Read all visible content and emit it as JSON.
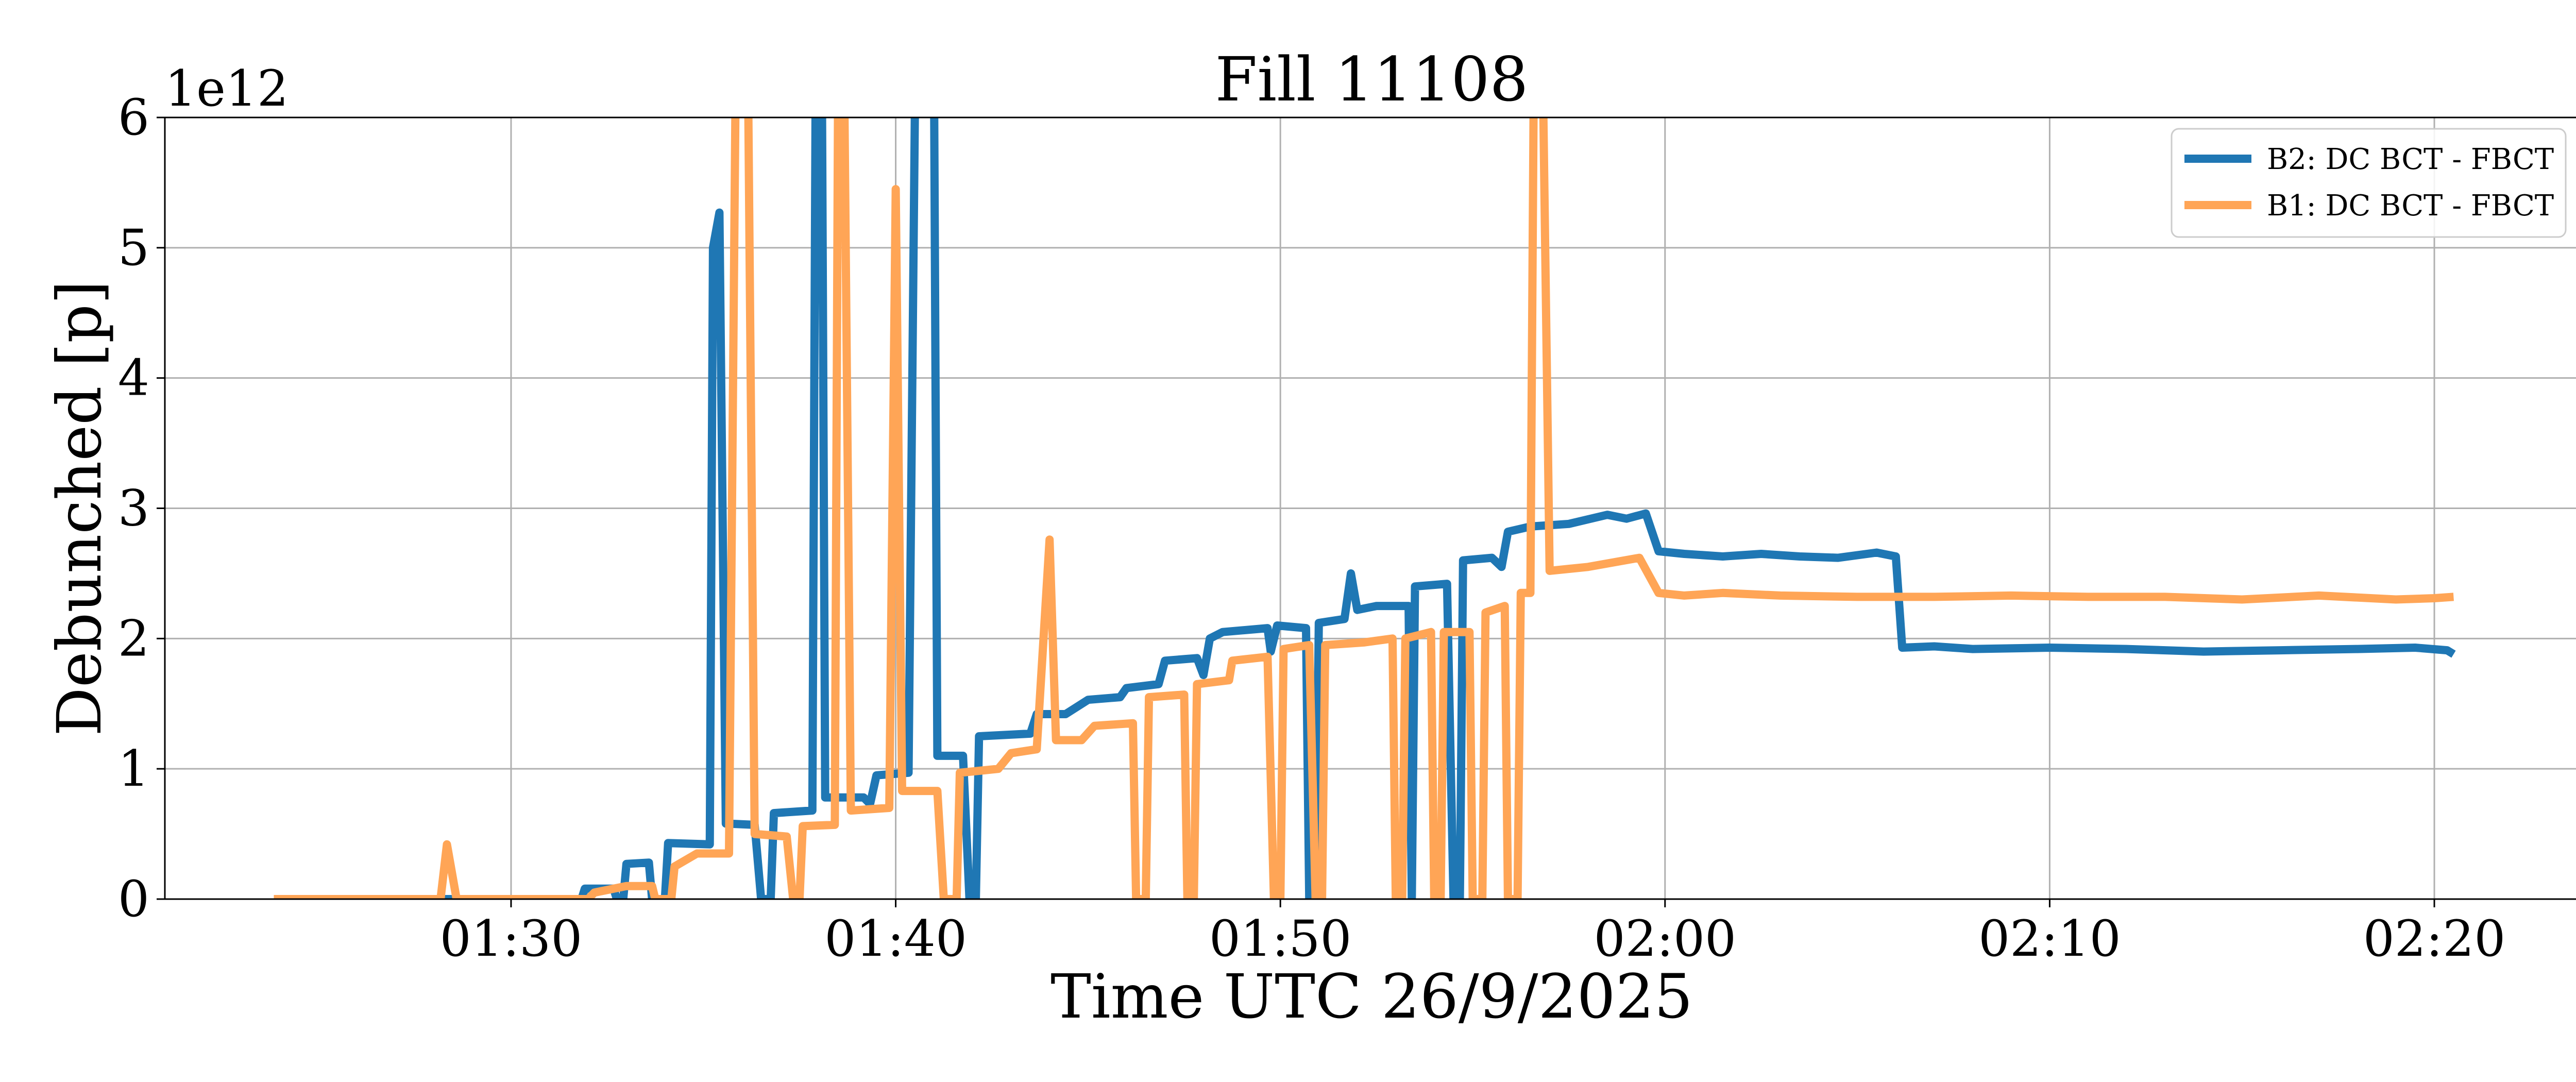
{
  "chart_data": {
    "type": "line",
    "title": "Fill 11108",
    "xlabel": "Time UTC 26/9/2025",
    "ylabel": "Debunched [p]",
    "y_offset_label": "1e12",
    "y_scale_factor": 1000000000000.0,
    "xlim": [
      "01:21:00",
      "02:23:45"
    ],
    "ylim": [
      0,
      6
    ],
    "x_ticks": [
      "01:30",
      "01:40",
      "01:50",
      "02:00",
      "02:10",
      "02:20"
    ],
    "y_ticks": [
      "0",
      "1",
      "2",
      "3",
      "4",
      "5",
      "6"
    ],
    "grid": true,
    "legend_position": "top-right",
    "series": [
      {
        "name": "B2: DC BCT - FBCT",
        "color": "#1f77b4",
        "points": [
          [
            "01:23:50",
            0
          ],
          [
            "01:31:50",
            0
          ],
          [
            "01:31:55",
            0.08
          ],
          [
            "01:32:40",
            0.08
          ],
          [
            "01:32:45",
            0
          ],
          [
            "01:32:55",
            0
          ],
          [
            "01:33:00",
            0.27
          ],
          [
            "01:33:35",
            0.28
          ],
          [
            "01:33:40",
            0
          ],
          [
            "01:34:00",
            0
          ],
          [
            "01:34:05",
            0.43
          ],
          [
            "01:35:10",
            0.42
          ],
          [
            "01:35:15",
            5.0
          ],
          [
            "01:35:25",
            5.27
          ],
          [
            "01:35:35",
            0.58
          ],
          [
            "01:36:20",
            0.57
          ],
          [
            "01:36:30",
            0
          ],
          [
            "01:36:45",
            0
          ],
          [
            "01:36:50",
            0.66
          ],
          [
            "01:37:50",
            0.68
          ],
          [
            "01:37:55",
            6.1
          ],
          [
            "01:38:05",
            6.1
          ],
          [
            "01:38:10",
            0.78
          ],
          [
            "01:39:10",
            0.78
          ],
          [
            "01:39:20",
            0.73
          ],
          [
            "01:39:30",
            0.95
          ],
          [
            "01:40:20",
            0.97
          ],
          [
            "01:40:30",
            6.1
          ],
          [
            "01:41:00",
            6.1
          ],
          [
            "01:41:05",
            1.1
          ],
          [
            "01:41:45",
            1.1
          ],
          [
            "01:41:55",
            0
          ],
          [
            "01:42:05",
            0
          ],
          [
            "01:42:10",
            1.25
          ],
          [
            "01:43:30",
            1.27
          ],
          [
            "01:43:40",
            1.42
          ],
          [
            "01:44:25",
            1.42
          ],
          [
            "01:45:00",
            1.53
          ],
          [
            "01:45:50",
            1.55
          ],
          [
            "01:46:00",
            1.62
          ],
          [
            "01:46:50",
            1.65
          ],
          [
            "01:47:00",
            1.83
          ],
          [
            "01:47:50",
            1.85
          ],
          [
            "01:48:00",
            1.72
          ],
          [
            "01:48:10",
            2.0
          ],
          [
            "01:48:30",
            2.05
          ],
          [
            "01:49:40",
            2.08
          ],
          [
            "01:49:45",
            1.9
          ],
          [
            "01:49:55",
            2.1
          ],
          [
            "01:50:40",
            2.08
          ],
          [
            "01:50:45",
            0
          ],
          [
            "01:50:55",
            0
          ],
          [
            "01:51:00",
            2.12
          ],
          [
            "01:51:40",
            2.15
          ],
          [
            "01:51:50",
            2.5
          ],
          [
            "01:52:00",
            2.22
          ],
          [
            "01:52:30",
            2.25
          ],
          [
            "01:53:20",
            2.25
          ],
          [
            "01:53:25",
            0
          ],
          [
            "01:53:30",
            2.4
          ],
          [
            "01:54:20",
            2.42
          ],
          [
            "01:54:30",
            0
          ],
          [
            "01:54:40",
            0
          ],
          [
            "01:54:45",
            2.6
          ],
          [
            "01:55:30",
            2.62
          ],
          [
            "01:55:45",
            2.55
          ],
          [
            "01:55:55",
            2.82
          ],
          [
            "01:56:30",
            2.86
          ],
          [
            "01:57:30",
            2.88
          ],
          [
            "01:58:30",
            2.95
          ],
          [
            "01:59:00",
            2.92
          ],
          [
            "01:59:30",
            2.96
          ],
          [
            "01:59:50",
            2.67
          ],
          [
            "02:00:30",
            2.65
          ],
          [
            "02:01:30",
            2.63
          ],
          [
            "02:02:30",
            2.65
          ],
          [
            "02:03:30",
            2.63
          ],
          [
            "02:04:30",
            2.62
          ],
          [
            "02:05:30",
            2.66
          ],
          [
            "02:06:00",
            2.63
          ],
          [
            "02:06:10",
            1.93
          ],
          [
            "02:07:00",
            1.94
          ],
          [
            "02:08:00",
            1.92
          ],
          [
            "02:10:00",
            1.93
          ],
          [
            "02:12:00",
            1.92
          ],
          [
            "02:14:00",
            1.9
          ],
          [
            "02:16:00",
            1.91
          ],
          [
            "02:18:00",
            1.92
          ],
          [
            "02:19:30",
            1.93
          ],
          [
            "02:20:20",
            1.91
          ],
          [
            "02:20:30",
            1.88
          ]
        ]
      },
      {
        "name": "B1: DC BCT - FBCT",
        "color": "#ffa556",
        "points": [
          [
            "01:23:50",
            0
          ],
          [
            "01:28:10",
            0
          ],
          [
            "01:28:20",
            0.42
          ],
          [
            "01:28:35",
            0
          ],
          [
            "01:32:00",
            0
          ],
          [
            "01:32:10",
            0.05
          ],
          [
            "01:33:00",
            0.1
          ],
          [
            "01:33:40",
            0.1
          ],
          [
            "01:33:45",
            0
          ],
          [
            "01:34:10",
            0
          ],
          [
            "01:34:15",
            0.25
          ],
          [
            "01:34:50",
            0.35
          ],
          [
            "01:35:40",
            0.35
          ],
          [
            "01:35:50",
            6.1
          ],
          [
            "01:36:10",
            6.1
          ],
          [
            "01:36:20",
            0.5
          ],
          [
            "01:37:10",
            0.48
          ],
          [
            "01:37:20",
            0
          ],
          [
            "01:37:30",
            0
          ],
          [
            "01:37:35",
            0.56
          ],
          [
            "01:38:25",
            0.57
          ],
          [
            "01:38:30",
            6.1
          ],
          [
            "01:38:40",
            6.1
          ],
          [
            "01:38:50",
            0.68
          ],
          [
            "01:39:50",
            0.7
          ],
          [
            "01:40:00",
            5.45
          ],
          [
            "01:40:10",
            0.83
          ],
          [
            "01:41:05",
            0.83
          ],
          [
            "01:41:15",
            0
          ],
          [
            "01:41:35",
            0
          ],
          [
            "01:41:40",
            0.97
          ],
          [
            "01:42:40",
            1.0
          ],
          [
            "01:43:00",
            1.12
          ],
          [
            "01:43:40",
            1.15
          ],
          [
            "01:44:00",
            2.76
          ],
          [
            "01:44:10",
            1.22
          ],
          [
            "01:44:50",
            1.22
          ],
          [
            "01:45:10",
            1.33
          ],
          [
            "01:46:10",
            1.35
          ],
          [
            "01:46:15",
            0
          ],
          [
            "01:46:30",
            0
          ],
          [
            "01:46:35",
            1.55
          ],
          [
            "01:47:30",
            1.57
          ],
          [
            "01:47:35",
            0
          ],
          [
            "01:47:45",
            0
          ],
          [
            "01:47:50",
            1.65
          ],
          [
            "01:48:40",
            1.68
          ],
          [
            "01:48:45",
            1.83
          ],
          [
            "01:49:40",
            1.86
          ],
          [
            "01:49:50",
            0
          ],
          [
            "01:50:00",
            0
          ],
          [
            "01:50:05",
            1.92
          ],
          [
            "01:50:45",
            1.95
          ],
          [
            "01:50:55",
            0
          ],
          [
            "01:51:05",
            0
          ],
          [
            "01:51:10",
            1.95
          ],
          [
            "01:52:10",
            1.97
          ],
          [
            "01:52:55",
            2.0
          ],
          [
            "01:53:00",
            0
          ],
          [
            "01:53:10",
            0
          ],
          [
            "01:53:15",
            2.0
          ],
          [
            "01:53:55",
            2.05
          ],
          [
            "01:54:00",
            0
          ],
          [
            "01:54:10",
            0
          ],
          [
            "01:54:15",
            2.05
          ],
          [
            "01:54:55",
            2.05
          ],
          [
            "01:55:00",
            0
          ],
          [
            "01:55:15",
            0
          ],
          [
            "01:55:20",
            2.2
          ],
          [
            "01:55:50",
            2.25
          ],
          [
            "01:55:55",
            0
          ],
          [
            "01:56:10",
            0
          ],
          [
            "01:56:15",
            2.35
          ],
          [
            "01:56:30",
            2.35
          ],
          [
            "01:56:35",
            6.1
          ],
          [
            "01:56:50",
            6.1
          ],
          [
            "01:57:00",
            2.52
          ],
          [
            "01:58:00",
            2.55
          ],
          [
            "01:59:20",
            2.62
          ],
          [
            "01:59:50",
            2.35
          ],
          [
            "02:00:30",
            2.33
          ],
          [
            "02:01:30",
            2.35
          ],
          [
            "02:03:00",
            2.33
          ],
          [
            "02:05:00",
            2.32
          ],
          [
            "02:07:00",
            2.32
          ],
          [
            "02:09:00",
            2.33
          ],
          [
            "02:11:00",
            2.32
          ],
          [
            "02:13:00",
            2.32
          ],
          [
            "02:15:00",
            2.3
          ],
          [
            "02:17:00",
            2.33
          ],
          [
            "02:19:00",
            2.3
          ],
          [
            "02:20:00",
            2.31
          ],
          [
            "02:20:30",
            2.32
          ]
        ]
      }
    ]
  }
}
